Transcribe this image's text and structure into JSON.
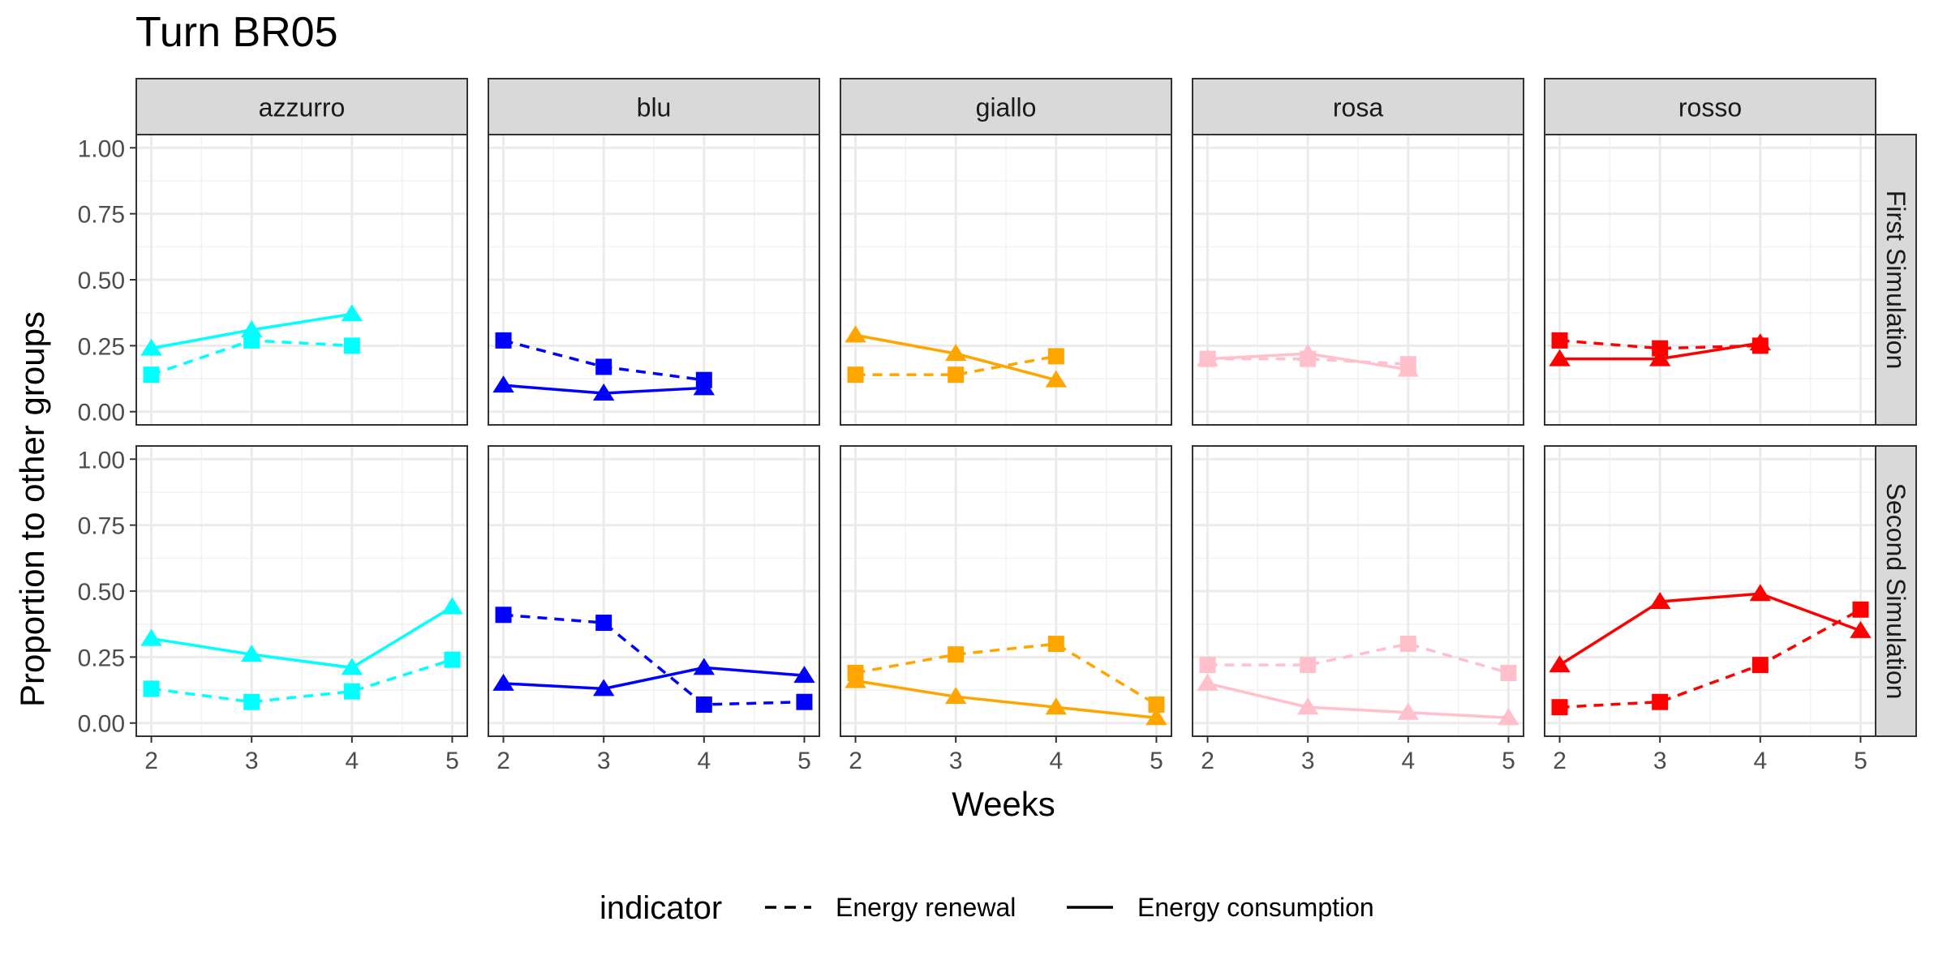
{
  "chart_data": {
    "type": "line",
    "title": "Turn BR05",
    "xlabel": "Weeks",
    "ylabel": "Proportion to other groups",
    "x_ticks": [
      2,
      3,
      4,
      5
    ],
    "y_ticks": [
      "0.00",
      "0.25",
      "0.50",
      "0.75",
      "1.00"
    ],
    "xlim": [
      1.85,
      5.15
    ],
    "ylim": [
      -0.05,
      1.05
    ],
    "grid": true,
    "legend": {
      "position": "bottom",
      "title": "indicator",
      "entries": [
        {
          "label": "Energy renewal",
          "linetype": "dashed",
          "shape": "square"
        },
        {
          "label": "Energy consumption",
          "linetype": "solid",
          "shape": "triangle"
        }
      ]
    },
    "columns": [
      {
        "label": "azzurro",
        "color": "#00FFFF"
      },
      {
        "label": "blu",
        "color": "#0000FF"
      },
      {
        "label": "giallo",
        "color": "#FFA500"
      },
      {
        "label": "rosa",
        "color": "#FFC0CB"
      },
      {
        "label": "rosso",
        "color": "#FF0000"
      }
    ],
    "rows": [
      {
        "label": "First Simulation",
        "panels": [
          {
            "renewal": [
              [
                2,
                0.14
              ],
              [
                3,
                0.27
              ],
              [
                4,
                0.25
              ]
            ],
            "consumption": [
              [
                2,
                0.24
              ],
              [
                3,
                0.31
              ],
              [
                4,
                0.37
              ]
            ]
          },
          {
            "renewal": [
              [
                2,
                0.27
              ],
              [
                3,
                0.17
              ],
              [
                4,
                0.12
              ]
            ],
            "consumption": [
              [
                2,
                0.1
              ],
              [
                3,
                0.07
              ],
              [
                4,
                0.09
              ]
            ]
          },
          {
            "renewal": [
              [
                2,
                0.14
              ],
              [
                3,
                0.14
              ],
              [
                4,
                0.21
              ]
            ],
            "consumption": [
              [
                2,
                0.29
              ],
              [
                3,
                0.22
              ],
              [
                4,
                0.12
              ]
            ]
          },
          {
            "renewal": [
              [
                2,
                0.2
              ],
              [
                3,
                0.2
              ],
              [
                4,
                0.18
              ]
            ],
            "consumption": [
              [
                2,
                0.2
              ],
              [
                3,
                0.22
              ],
              [
                4,
                0.16
              ]
            ]
          },
          {
            "renewal": [
              [
                2,
                0.27
              ],
              [
                3,
                0.24
              ],
              [
                4,
                0.25
              ]
            ],
            "consumption": [
              [
                2,
                0.2
              ],
              [
                3,
                0.2
              ],
              [
                4,
                0.26
              ]
            ]
          }
        ]
      },
      {
        "label": "Second Simulation",
        "panels": [
          {
            "renewal": [
              [
                2,
                0.13
              ],
              [
                3,
                0.08
              ],
              [
                4,
                0.12
              ],
              [
                5,
                0.24
              ]
            ],
            "consumption": [
              [
                2,
                0.32
              ],
              [
                3,
                0.26
              ],
              [
                4,
                0.21
              ],
              [
                5,
                0.44
              ]
            ]
          },
          {
            "renewal": [
              [
                2,
                0.41
              ],
              [
                3,
                0.38
              ],
              [
                4,
                0.07
              ],
              [
                5,
                0.08
              ]
            ],
            "consumption": [
              [
                2,
                0.15
              ],
              [
                3,
                0.13
              ],
              [
                4,
                0.21
              ],
              [
                5,
                0.18
              ]
            ]
          },
          {
            "renewal": [
              [
                2,
                0.19
              ],
              [
                3,
                0.26
              ],
              [
                4,
                0.3
              ],
              [
                5,
                0.07
              ]
            ],
            "consumption": [
              [
                2,
                0.16
              ],
              [
                3,
                0.1
              ],
              [
                4,
                0.06
              ],
              [
                5,
                0.02
              ]
            ]
          },
          {
            "renewal": [
              [
                2,
                0.22
              ],
              [
                3,
                0.22
              ],
              [
                4,
                0.3
              ],
              [
                5,
                0.19
              ]
            ],
            "consumption": [
              [
                2,
                0.15
              ],
              [
                3,
                0.06
              ],
              [
                4,
                0.04
              ],
              [
                5,
                0.02
              ]
            ]
          },
          {
            "renewal": [
              [
                2,
                0.06
              ],
              [
                3,
                0.08
              ],
              [
                4,
                0.22
              ],
              [
                5,
                0.43
              ]
            ],
            "consumption": [
              [
                2,
                0.22
              ],
              [
                3,
                0.46
              ],
              [
                4,
                0.49
              ],
              [
                5,
                0.35
              ]
            ]
          }
        ]
      }
    ]
  }
}
